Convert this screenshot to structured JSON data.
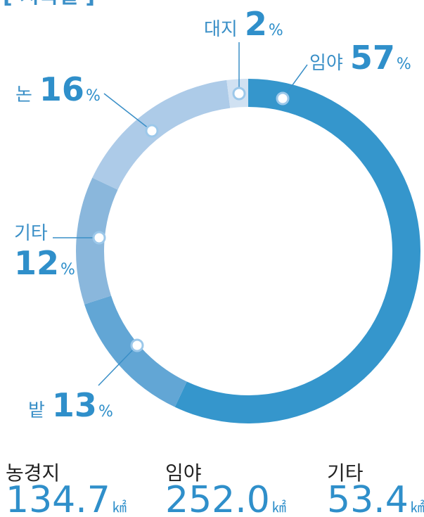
{
  "chart_data": {
    "type": "donut",
    "title": "[ 지목별 ]",
    "unit": "%",
    "categories": [
      "임야",
      "밭",
      "기타",
      "논",
      "대지"
    ],
    "values": [
      57,
      13,
      12,
      16,
      2
    ],
    "colors": [
      "#3596cc",
      "#62a6d5",
      "#8ab7dc",
      "#adcbe8",
      "#d0e1f2"
    ]
  },
  "stats": [
    {
      "label": "농경지",
      "value": "134.7",
      "unit": "㎢"
    },
    {
      "label": "임야",
      "value": "252.0",
      "unit": "㎢"
    },
    {
      "label": "기타",
      "value": "53.4",
      "unit": "㎢"
    }
  ]
}
